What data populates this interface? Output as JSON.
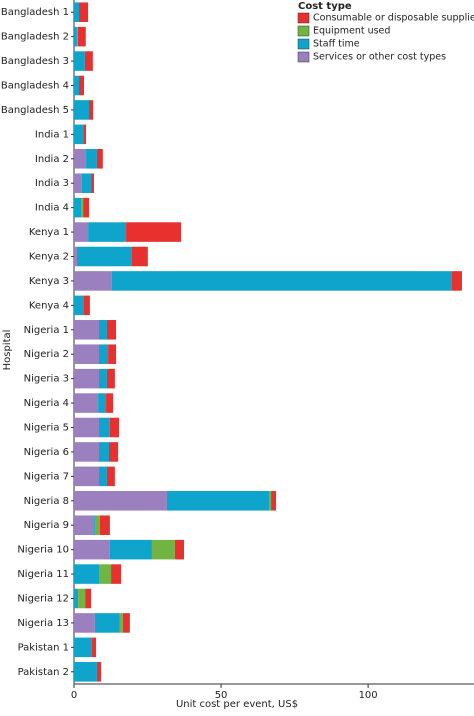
{
  "chart_data": {
    "type": "stacked-barh",
    "xlabel": "Unit cost per event, US$",
    "ylabel": "Hospital",
    "legend_title": "Cost type",
    "legend": "top-right",
    "categories": [
      "Bangladesh 1",
      "Bangladesh 2",
      "Bangladesh 3",
      "Bangladesh 4",
      "Bangladesh 5",
      "India 1",
      "India 2",
      "India 3",
      "India 4",
      "Kenya 1",
      "Kenya 2",
      "Kenya 3",
      "Kenya 4",
      "Nigeria 1",
      "Nigeria 2",
      "Nigeria 3",
      "Nigeria 4",
      "Nigeria 5",
      "Nigeria 6",
      "Nigeria 7",
      "Nigeria 8",
      "Nigeria 9",
      "Nigeria 10",
      "Nigeria 11",
      "Nigeria 12",
      "Nigeria 13",
      "Pakistan 1",
      "Pakistan 2"
    ],
    "series": [
      {
        "name": "Consumable or disposable supplies used",
        "color": "#e8312f",
        "values": [
          3.1,
          2.7,
          2.7,
          1.7,
          1.4,
          0.7,
          2,
          1,
          2,
          18.7,
          5.4,
          3.4,
          2,
          3.1,
          2.7,
          2.7,
          2.4,
          3.1,
          3.1,
          2.7,
          1.7,
          3.4,
          3.1,
          3.4,
          2,
          2.4,
          1.4,
          1.4
        ]
      },
      {
        "name": "Equipment used",
        "color": "#72b444",
        "values": [
          0,
          0.3,
          0,
          0,
          0,
          0,
          0,
          0,
          0.7,
          0,
          0,
          0,
          0,
          0,
          0,
          0,
          0,
          0,
          0,
          0,
          0.7,
          1.7,
          7.8,
          4.1,
          2.4,
          1,
          0,
          0
        ]
      },
      {
        "name": "Staff time",
        "color": "#0ea4cc",
        "values": [
          1.7,
          1,
          3.7,
          1.7,
          5.1,
          3.4,
          3.7,
          3.1,
          2.4,
          12.9,
          18.7,
          115.6,
          3.4,
          2.7,
          3.1,
          2.7,
          2.7,
          3.7,
          3.4,
          2.7,
          34.7,
          0.3,
          14.3,
          8.5,
          1.4,
          8.5,
          6.1,
          7.8
        ]
      },
      {
        "name": "Services or other cost types",
        "color": "#9b80c0",
        "values": [
          0,
          0,
          0,
          0,
          0,
          0,
          4.1,
          2.7,
          0,
          4.8,
          1,
          12.9,
          0,
          8.5,
          8.5,
          8.5,
          8.2,
          8.5,
          8.5,
          8.5,
          31.6,
          6.8,
          12.2,
          0,
          0,
          7.1,
          0,
          0
        ]
      }
    ],
    "xlim": [
      0,
      136
    ],
    "xticks": [
      0,
      50,
      100
    ]
  }
}
